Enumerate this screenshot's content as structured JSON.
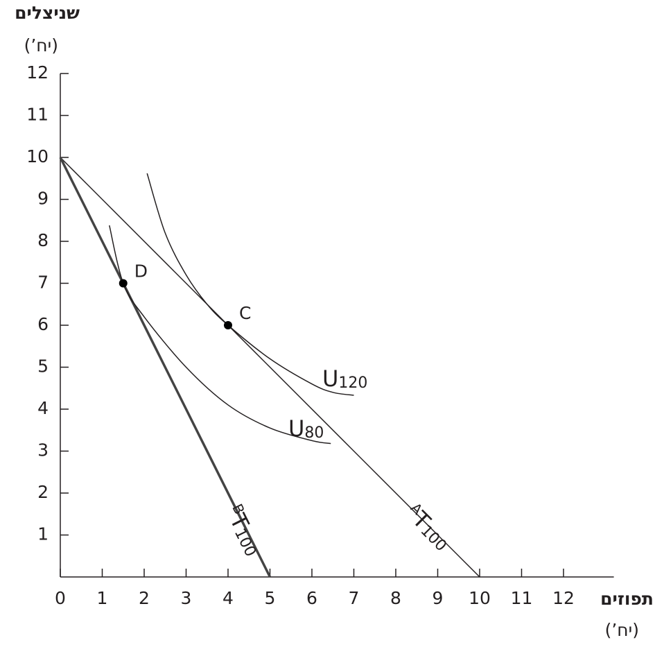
{
  "chart_data": {
    "type": "line",
    "y_label": "שניצלים",
    "y_unit": "(יח’)",
    "x_label": "תפוזים",
    "x_unit": "(יח’)",
    "xlim": [
      0,
      13.2
    ],
    "ylim": [
      0,
      12
    ],
    "xticks": [
      0,
      1,
      2,
      3,
      4,
      5,
      6,
      7,
      8,
      9,
      10,
      11,
      12
    ],
    "yticks": [
      1,
      2,
      3,
      4,
      5,
      6,
      7,
      8,
      9,
      10,
      11,
      12
    ],
    "series": [
      {
        "label": {
          "prefix": "A",
          "main": "T",
          "sub": "100"
        },
        "color": "#231f20",
        "width": 1.5,
        "x": [
          0,
          10
        ],
        "values": [
          10,
          0
        ]
      },
      {
        "label": {
          "prefix": "B",
          "main": "T",
          "sub": "100"
        },
        "color": "#444444",
        "width": 3.5,
        "x": [
          0,
          5
        ],
        "values": [
          10,
          0
        ]
      },
      {
        "label": {
          "main": "U",
          "sub": "120"
        },
        "color": "#231f20",
        "width": 1.5,
        "x": [
          2.07,
          2.5,
          3,
          3.5,
          4,
          5,
          6,
          6.5,
          7
        ],
        "values": [
          9.62,
          8.2,
          7.2,
          6.5,
          6,
          5.2,
          4.6,
          4.4,
          4.33
        ]
      },
      {
        "label": {
          "main": "U",
          "sub": "80"
        },
        "color": "#231f20",
        "width": 1.5,
        "x": [
          1.17,
          1.5,
          2,
          3,
          4,
          5,
          6,
          6.45
        ],
        "values": [
          8.38,
          7,
          6.2,
          5,
          4.1,
          3.55,
          3.25,
          3.18
        ]
      }
    ],
    "points": [
      {
        "label": "D",
        "x": 1.5,
        "y": 7
      },
      {
        "label": "C",
        "x": 4,
        "y": 6
      }
    ]
  }
}
